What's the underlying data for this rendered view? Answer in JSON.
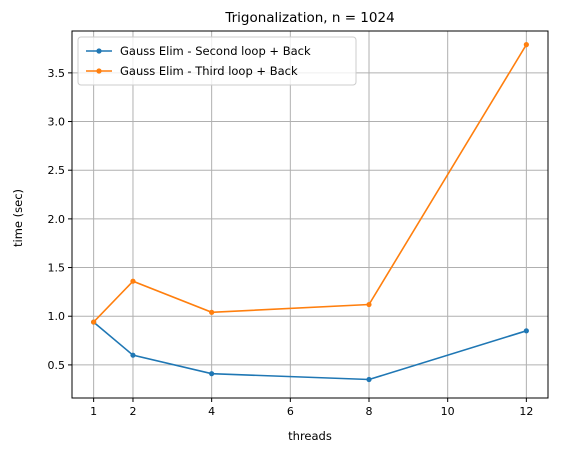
{
  "chart_data": {
    "type": "line",
    "title": "Trigonalization, n = 1024",
    "xlabel": "threads",
    "ylabel": "time (sec)",
    "xlim": [
      0.45,
      12.55
    ],
    "ylim": [
      0.16,
      3.93
    ],
    "xticks": [
      1,
      2,
      4,
      6,
      8,
      10,
      12
    ],
    "xtick_labels": [
      "1",
      "2",
      "4",
      "6",
      "8",
      "10",
      "12"
    ],
    "yticks": [
      0.5,
      1.0,
      1.5,
      2.0,
      2.5,
      3.0,
      3.5
    ],
    "ytick_labels": [
      "0.5",
      "1.0",
      "1.5",
      "2.0",
      "2.5",
      "3.0",
      "3.5"
    ],
    "grid": true,
    "legend_position": "top-left",
    "series": [
      {
        "name": "Gauss Elim - Second loop + Back",
        "color": "#1f77b4",
        "x": [
          1,
          2,
          4,
          8,
          12
        ],
        "y": [
          0.94,
          0.6,
          0.41,
          0.35,
          0.85
        ]
      },
      {
        "name": "Gauss Elim - Third loop + Back",
        "color": "#ff7f0e",
        "x": [
          1,
          2,
          4,
          8,
          12
        ],
        "y": [
          0.94,
          1.36,
          1.04,
          1.12,
          3.79
        ]
      }
    ]
  }
}
